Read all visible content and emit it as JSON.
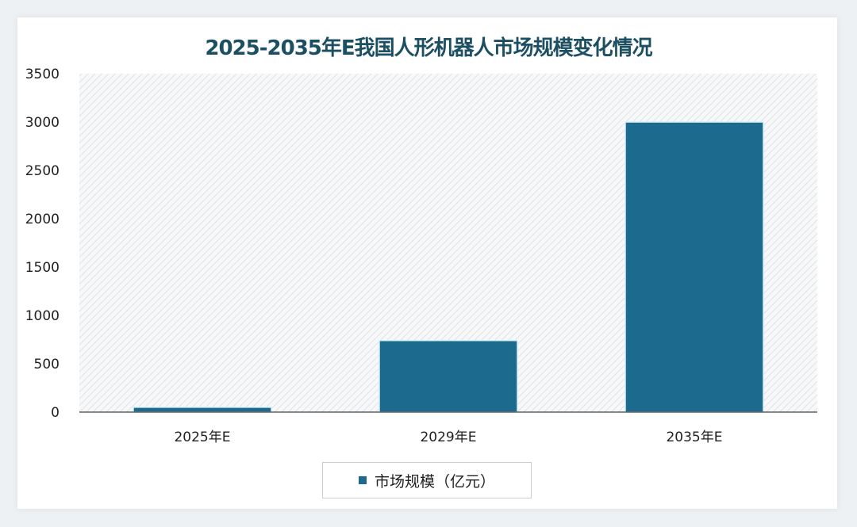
{
  "chart_data": {
    "type": "bar",
    "title": "2025-2035年E我国人形机器人市场规模变化情况",
    "categories": [
      "2025年E",
      "2029年E",
      "2035年E"
    ],
    "series": [
      {
        "name": "市场规模（亿元）",
        "values": [
          50,
          740,
          3000
        ],
        "color": "#1c6a8d"
      }
    ],
    "ylim": [
      0,
      3500
    ],
    "yticks": [
      "0",
      "500",
      "1000",
      "1500",
      "2000",
      "2500",
      "3000",
      "3500"
    ],
    "grid": false,
    "legend": "bottom",
    "background": "diagonal-hatch"
  }
}
